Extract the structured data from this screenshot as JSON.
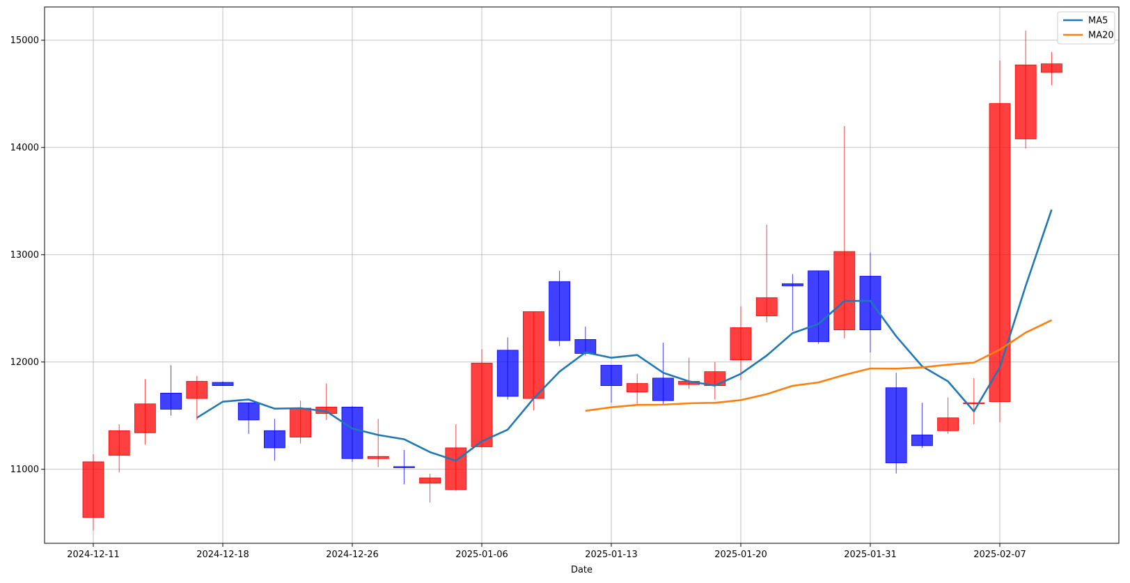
{
  "chart_data": {
    "type": "candlestick",
    "title": "",
    "xlabel": "Date",
    "ylabel": "",
    "ylim": [
      10310,
      15310
    ],
    "grid": true,
    "legend_position": "top-right",
    "colors": {
      "up": "#ff0000",
      "down": "#0000ff",
      "ma5": "#1f77b4",
      "ma20": "#ff7f0e"
    },
    "xticks": [
      "2024-12-11",
      "2024-12-18",
      "2024-12-26",
      "2025-01-06",
      "2025-01-13",
      "2025-01-20",
      "2025-01-31",
      "2025-02-07"
    ],
    "xtick_positions": [
      0,
      5,
      10,
      15,
      20,
      25,
      30,
      35
    ],
    "yticks": [
      11000,
      12000,
      13000,
      14000,
      15000
    ],
    "candles": [
      {
        "open": 10550,
        "high": 11140,
        "low": 10430,
        "close": 11070
      },
      {
        "open": 11130,
        "high": 11420,
        "low": 10970,
        "close": 11360
      },
      {
        "open": 11340,
        "high": 11840,
        "low": 11230,
        "close": 11610
      },
      {
        "open": 11710,
        "high": 11970,
        "low": 11500,
        "close": 11560
      },
      {
        "open": 11660,
        "high": 11870,
        "low": 11460,
        "close": 11820
      },
      {
        "open": 11810,
        "high": 11820,
        "low": 11780,
        "close": 11780
      },
      {
        "open": 11620,
        "high": 11620,
        "low": 11330,
        "close": 11460
      },
      {
        "open": 11360,
        "high": 11470,
        "low": 11080,
        "close": 11200
      },
      {
        "open": 11300,
        "high": 11640,
        "low": 11240,
        "close": 11570
      },
      {
        "open": 11520,
        "high": 11800,
        "low": 11460,
        "close": 11580
      },
      {
        "open": 11580,
        "high": 11590,
        "low": 11070,
        "close": 11100
      },
      {
        "open": 11100,
        "high": 11470,
        "low": 11020,
        "close": 11120
      },
      {
        "open": 11025,
        "high": 11180,
        "low": 10860,
        "close": 11015
      },
      {
        "open": 10870,
        "high": 10960,
        "low": 10690,
        "close": 10920
      },
      {
        "open": 10810,
        "high": 11420,
        "low": 10800,
        "close": 11200
      },
      {
        "open": 11210,
        "high": 12120,
        "low": 11200,
        "close": 11990
      },
      {
        "open": 12110,
        "high": 12230,
        "low": 11650,
        "close": 11680
      },
      {
        "open": 11660,
        "high": 12470,
        "low": 11550,
        "close": 12470
      },
      {
        "open": 12750,
        "high": 12850,
        "low": 12150,
        "close": 12200
      },
      {
        "open": 12210,
        "high": 12330,
        "low": 12060,
        "close": 12080
      },
      {
        "open": 11970,
        "high": 11970,
        "low": 11620,
        "close": 11780
      },
      {
        "open": 11720,
        "high": 11890,
        "low": 11600,
        "close": 11800
      },
      {
        "open": 11850,
        "high": 12180,
        "low": 11600,
        "close": 11640
      },
      {
        "open": 11790,
        "high": 12040,
        "low": 11750,
        "close": 11820
      },
      {
        "open": 11780,
        "high": 12000,
        "low": 11650,
        "close": 11910
      },
      {
        "open": 12020,
        "high": 12520,
        "low": 11830,
        "close": 12320
      },
      {
        "open": 12430,
        "high": 13280,
        "low": 12370,
        "close": 12600
      },
      {
        "open": 12730,
        "high": 12820,
        "low": 12290,
        "close": 12710
      },
      {
        "open": 12850,
        "high": 12850,
        "low": 12170,
        "close": 12190
      },
      {
        "open": 12300,
        "high": 14200,
        "low": 12220,
        "close": 13030
      },
      {
        "open": 12800,
        "high": 13020,
        "low": 12090,
        "close": 12300
      },
      {
        "open": 11760,
        "high": 11900,
        "low": 10960,
        "close": 11060
      },
      {
        "open": 11320,
        "high": 11620,
        "low": 11200,
        "close": 11220
      },
      {
        "open": 11360,
        "high": 11670,
        "low": 11330,
        "close": 11480
      },
      {
        "open": 11610,
        "high": 11850,
        "low": 11420,
        "close": 11620
      },
      {
        "open": 11630,
        "high": 14810,
        "low": 11440,
        "close": 14410
      },
      {
        "open": 14080,
        "high": 15090,
        "low": 13990,
        "close": 14770
      },
      {
        "open": 14700,
        "high": 14890,
        "low": 14580,
        "close": 14780
      }
    ],
    "series": [
      {
        "name": "MA5",
        "start_index": 4,
        "values": [
          11480,
          11630,
          11650,
          11565,
          11570,
          11540,
          11380,
          11320,
          11280,
          11160,
          11080,
          11260,
          11370,
          11660,
          11910,
          12090,
          12040,
          12065,
          11900,
          11820,
          11780,
          11890,
          12060,
          12270,
          12355,
          12570,
          12570,
          12240,
          11960,
          11820,
          11540,
          11950,
          12710,
          13420
        ]
      },
      {
        "name": "MA20",
        "start_index": 19,
        "values": [
          11545,
          11578,
          11600,
          11602,
          11615,
          11620,
          11645,
          11700,
          11778,
          11810,
          11880,
          11940,
          11938,
          11950,
          11975,
          11995,
          12115,
          12275,
          12390
        ]
      }
    ]
  }
}
